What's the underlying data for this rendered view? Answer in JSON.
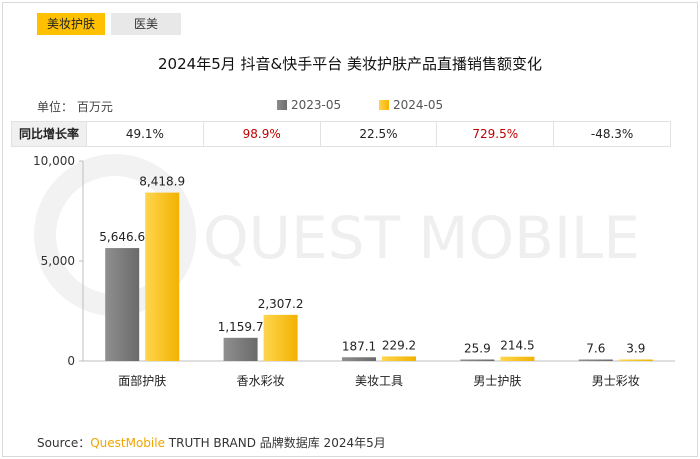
{
  "tabs": [
    {
      "label": "美妆护肤",
      "active": true
    },
    {
      "label": "医美",
      "active": false
    }
  ],
  "unit_label": "单位：  百万元",
  "yoy_header": "同比增长率",
  "yoy": [
    "49.1%",
    "98.9%",
    "22.5%",
    "729.5%",
    "-48.3%"
  ],
  "source": {
    "prefix": "Source：",
    "brand": "QuestMobile",
    "rest": " TRUTH BRAND 品牌数据库 2024年5月"
  },
  "watermark": "QUEST MOBILE",
  "colors": {
    "series_2023": "#7f7f7f",
    "series_2024": "#FFC000",
    "negative_text": "#C00000",
    "positive_text": "#222222"
  },
  "chart_data": {
    "type": "bar",
    "title": "2024年5月 抖音&快手平台 美妆护肤产品直播销售额变化",
    "categories": [
      "面部护肤",
      "香水彩妆",
      "美妆工具",
      "男士护肤",
      "男士彩妆"
    ],
    "series": [
      {
        "name": "2023-05",
        "values": [
          5646.6,
          1159.7,
          187.1,
          25.9,
          7.6
        ],
        "labels": [
          "5,646.6",
          "1,159.7",
          "187.1",
          "25.9",
          "7.6"
        ]
      },
      {
        "name": "2024-05",
        "values": [
          8418.9,
          2307.2,
          229.2,
          214.5,
          3.9
        ],
        "labels": [
          "8,418.9",
          "2,307.2",
          "229.2",
          "214.5",
          "3.9"
        ]
      }
    ],
    "ylim": [
      0,
      10000
    ],
    "yticks": [
      0,
      5000,
      10000
    ],
    "ytick_labels": [
      "0",
      "5,000",
      "10,000"
    ],
    "legend": "top-center",
    "grid": false
  }
}
